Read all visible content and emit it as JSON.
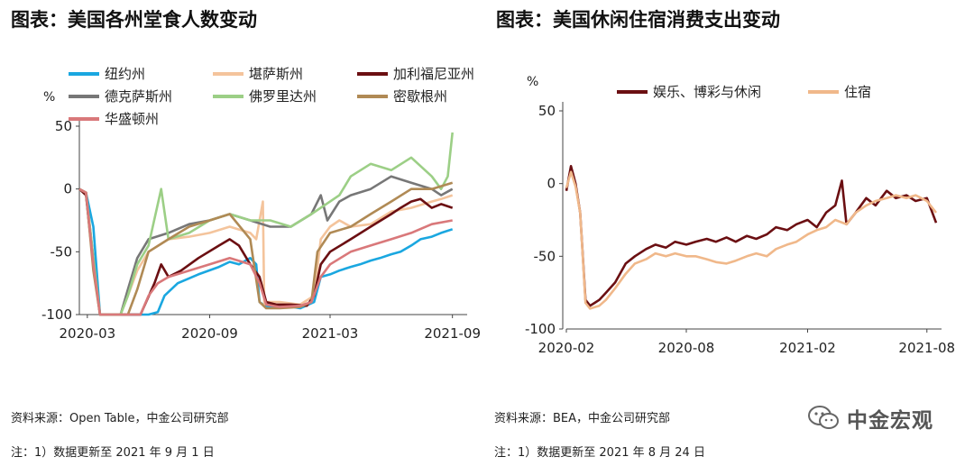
{
  "left_panel": {
    "title": "图表：美国各州堂食人数变动",
    "source": "资料来源：Open Table，中金公司研究部",
    "note": "注：1）数据更新至 2021 年 9 月 1 日"
  },
  "right_panel": {
    "title": "图表：美国休闲住宿消费支出变动",
    "source": "资料来源：BEA，中金公司研究部",
    "note": "注：1）数据更新至 2021 年 8 月 24 日"
  },
  "watermark": {
    "text": "中金宏观",
    "icon": "wechat-icon"
  },
  "chart_data": [
    {
      "type": "line",
      "title": "图表：美国各州堂食人数变动",
      "ylabel": "%",
      "xlabel": "",
      "ylim": [
        -100,
        50
      ],
      "yticks": [
        50,
        0,
        -50,
        -100
      ],
      "xlim": [
        "2020-02-18",
        "2021-09-15"
      ],
      "xticks": [
        "2020-03",
        "2020-09",
        "2021-03",
        "2021-09"
      ],
      "grid": false,
      "legend_position": "top",
      "series": [
        {
          "name": "纽约州",
          "color": "#1aa7e0",
          "x": [
            "2020-02-18",
            "2020-02-28",
            "2020-03-10",
            "2020-03-20",
            "2020-04-01",
            "2020-05-01",
            "2020-06-01",
            "2020-06-15",
            "2020-06-25",
            "2020-07-15",
            "2020-08-15",
            "2020-09-15",
            "2020-10-01",
            "2020-10-15",
            "2020-11-01",
            "2020-11-10",
            "2020-11-15",
            "2020-11-25",
            "2020-12-10",
            "2020-12-25",
            "2021-01-15",
            "2021-02-05",
            "2021-02-15",
            "2021-03-01",
            "2021-03-15",
            "2021-04-01",
            "2021-04-15",
            "2021-05-01",
            "2021-05-15",
            "2021-06-01",
            "2021-06-15",
            "2021-07-01",
            "2021-07-15",
            "2021-08-01",
            "2021-08-15",
            "2021-09-01"
          ],
          "y": [
            0,
            -3,
            -30,
            -100,
            -100,
            -100,
            -100,
            -98,
            -85,
            -75,
            -68,
            -62,
            -58,
            -60,
            -55,
            -60,
            -90,
            -94,
            -94,
            -93,
            -95,
            -90,
            -70,
            -68,
            -65,
            -62,
            -60,
            -57,
            -55,
            -52,
            -50,
            -45,
            -40,
            -38,
            -35,
            -32
          ]
        },
        {
          "name": "堪萨斯州",
          "color": "#f4c49c",
          "x": [
            "2020-02-18",
            "2020-02-28",
            "2020-03-10",
            "2020-03-20",
            "2020-04-01",
            "2020-04-20",
            "2020-05-01",
            "2020-05-15",
            "2020-06-01",
            "2020-07-01",
            "2020-08-01",
            "2020-09-01",
            "2020-10-01",
            "2020-11-01",
            "2020-11-10",
            "2020-11-20",
            "2020-11-22",
            "2020-11-25",
            "2020-12-15",
            "2021-01-15",
            "2021-02-05",
            "2021-02-15",
            "2021-03-01",
            "2021-03-15",
            "2021-04-01",
            "2021-05-01",
            "2021-06-01",
            "2021-07-01",
            "2021-08-01",
            "2021-08-15",
            "2021-09-01"
          ],
          "y": [
            0,
            -3,
            -60,
            -100,
            -100,
            -100,
            -85,
            -65,
            -50,
            -40,
            -38,
            -35,
            -30,
            -35,
            -40,
            -10,
            -92,
            -90,
            -90,
            -92,
            -85,
            -40,
            -30,
            -25,
            -30,
            -28,
            -18,
            -15,
            -10,
            -8,
            -5
          ]
        },
        {
          "name": "加利福尼亚州",
          "color": "#6b0f12",
          "x": [
            "2020-02-18",
            "2020-02-28",
            "2020-03-10",
            "2020-03-20",
            "2020-04-01",
            "2020-05-01",
            "2020-05-20",
            "2020-06-10",
            "2020-06-20",
            "2020-07-01",
            "2020-07-20",
            "2020-08-15",
            "2020-09-15",
            "2020-10-01",
            "2020-10-15",
            "2020-11-01",
            "2020-11-15",
            "2020-11-25",
            "2020-12-10",
            "2021-01-01",
            "2021-01-25",
            "2021-02-05",
            "2021-02-15",
            "2021-03-01",
            "2021-04-01",
            "2021-05-01",
            "2021-06-01",
            "2021-06-15",
            "2021-07-01",
            "2021-07-15",
            "2021-08-01",
            "2021-08-15",
            "2021-09-01"
          ],
          "y": [
            0,
            -5,
            -60,
            -100,
            -100,
            -100,
            -100,
            -75,
            -60,
            -70,
            -65,
            -55,
            -45,
            -40,
            -45,
            -60,
            -70,
            -90,
            -92,
            -92,
            -93,
            -85,
            -60,
            -50,
            -40,
            -30,
            -20,
            -15,
            -10,
            -8,
            -15,
            -12,
            -15
          ]
        },
        {
          "name": "德克萨斯州",
          "color": "#777777",
          "x": [
            "2020-02-18",
            "2020-02-28",
            "2020-03-10",
            "2020-03-20",
            "2020-04-01",
            "2020-04-20",
            "2020-05-01",
            "2020-05-15",
            "2020-06-01",
            "2020-07-01",
            "2020-08-01",
            "2020-09-01",
            "2020-10-01",
            "2020-11-01",
            "2020-12-01",
            "2021-01-01",
            "2021-02-01",
            "2021-02-15",
            "2021-02-25",
            "2021-03-15",
            "2021-04-01",
            "2021-05-01",
            "2021-06-01",
            "2021-07-01",
            "2021-08-01",
            "2021-08-15",
            "2021-09-01"
          ],
          "y": [
            0,
            -3,
            -55,
            -100,
            -100,
            -100,
            -80,
            -55,
            -40,
            -35,
            -28,
            -25,
            -20,
            -25,
            -30,
            -30,
            -20,
            -5,
            -25,
            -10,
            -5,
            0,
            10,
            5,
            0,
            -5,
            0
          ]
        },
        {
          "name": "佛罗里达州",
          "color": "#9ccf86",
          "x": [
            "2020-02-18",
            "2020-02-28",
            "2020-03-10",
            "2020-03-20",
            "2020-04-01",
            "2020-04-20",
            "2020-05-01",
            "2020-05-15",
            "2020-06-01",
            "2020-06-20",
            "2020-07-01",
            "2020-08-01",
            "2020-09-01",
            "2020-10-01",
            "2020-11-01",
            "2020-12-01",
            "2021-01-01",
            "2021-02-01",
            "2021-03-01",
            "2021-03-15",
            "2021-04-01",
            "2021-05-01",
            "2021-06-01",
            "2021-07-01",
            "2021-08-01",
            "2021-08-15",
            "2021-08-25",
            "2021-09-01"
          ],
          "y": [
            0,
            -3,
            -55,
            -100,
            -100,
            -100,
            -85,
            -60,
            -45,
            0,
            -40,
            -35,
            -25,
            -20,
            -25,
            -25,
            -30,
            -20,
            -10,
            -5,
            10,
            20,
            15,
            25,
            10,
            0,
            10,
            45
          ]
        },
        {
          "name": "密歇根州",
          "color": "#b08a55",
          "x": [
            "2020-02-18",
            "2020-02-28",
            "2020-03-10",
            "2020-03-20",
            "2020-04-01",
            "2020-05-01",
            "2020-05-15",
            "2020-06-01",
            "2020-07-01",
            "2020-08-01",
            "2020-09-01",
            "2020-10-01",
            "2020-11-01",
            "2020-11-15",
            "2020-11-25",
            "2020-12-15",
            "2021-01-15",
            "2021-02-01",
            "2021-02-10",
            "2021-03-01",
            "2021-04-01",
            "2021-05-01",
            "2021-06-01",
            "2021-07-01",
            "2021-08-01",
            "2021-09-01"
          ],
          "y": [
            0,
            -3,
            -65,
            -100,
            -100,
            -100,
            -80,
            -50,
            -40,
            -30,
            -25,
            -20,
            -40,
            -90,
            -95,
            -95,
            -94,
            -90,
            -50,
            -35,
            -30,
            -20,
            -10,
            0,
            0,
            5
          ]
        },
        {
          "name": "华盛顿州",
          "color": "#d9787a",
          "x": [
            "2020-02-18",
            "2020-02-28",
            "2020-03-10",
            "2020-03-20",
            "2020-04-01",
            "2020-05-01",
            "2020-05-20",
            "2020-06-01",
            "2020-06-15",
            "2020-07-01",
            "2020-08-01",
            "2020-09-01",
            "2020-10-01",
            "2020-11-01",
            "2020-11-15",
            "2020-11-25",
            "2020-12-15",
            "2021-01-15",
            "2021-02-01",
            "2021-02-15",
            "2021-03-01",
            "2021-04-01",
            "2021-05-01",
            "2021-06-01",
            "2021-07-01",
            "2021-08-01",
            "2021-09-01"
          ],
          "y": [
            0,
            -3,
            -60,
            -100,
            -100,
            -100,
            -100,
            -85,
            -75,
            -70,
            -65,
            -60,
            -55,
            -60,
            -75,
            -92,
            -94,
            -93,
            -90,
            -70,
            -60,
            -50,
            -45,
            -40,
            -35,
            -28,
            -25
          ]
        }
      ]
    },
    {
      "type": "line",
      "title": "图表：美国休闲住宿消费支出变动",
      "ylabel": "%",
      "xlabel": "",
      "ylim": [
        -100,
        50
      ],
      "yticks": [
        50,
        0,
        -50,
        -100
      ],
      "xlim": [
        "2020-02-01",
        "2021-08-15"
      ],
      "xticks": [
        "2020-02",
        "2020-08",
        "2021-02",
        "2021-08"
      ],
      "grid": false,
      "legend_position": "top",
      "series": [
        {
          "name": "娱乐、博彩与休闲",
          "color": "#6b0f12",
          "x": [
            "2020-02-01",
            "2020-02-08",
            "2020-02-15",
            "2020-02-22",
            "2020-03-01",
            "2020-03-08",
            "2020-03-15",
            "2020-03-22",
            "2020-04-01",
            "2020-04-15",
            "2020-05-01",
            "2020-05-15",
            "2020-06-01",
            "2020-06-15",
            "2020-07-01",
            "2020-07-15",
            "2020-08-01",
            "2020-08-15",
            "2020-09-01",
            "2020-09-15",
            "2020-10-01",
            "2020-10-15",
            "2020-11-01",
            "2020-11-15",
            "2020-12-01",
            "2020-12-15",
            "2021-01-01",
            "2021-01-15",
            "2021-02-01",
            "2021-02-15",
            "2021-03-01",
            "2021-03-15",
            "2021-03-25",
            "2021-04-01",
            "2021-04-15",
            "2021-05-01",
            "2021-05-15",
            "2021-06-01",
            "2021-06-15",
            "2021-07-01",
            "2021-07-15",
            "2021-08-01",
            "2021-08-15"
          ],
          "y": [
            -5,
            12,
            0,
            -20,
            -80,
            -84,
            -82,
            -80,
            -75,
            -68,
            -55,
            -50,
            -45,
            -42,
            -44,
            -40,
            -42,
            -40,
            -38,
            -40,
            -37,
            -40,
            -36,
            -38,
            -35,
            -30,
            -32,
            -28,
            -25,
            -30,
            -20,
            -15,
            2,
            -28,
            -20,
            -10,
            -15,
            -5,
            -10,
            -8,
            -12,
            -10,
            -27
          ]
        },
        {
          "name": "住宿",
          "color": "#f0b88a",
          "x": [
            "2020-02-01",
            "2020-02-08",
            "2020-02-15",
            "2020-02-22",
            "2020-03-01",
            "2020-03-08",
            "2020-03-15",
            "2020-03-22",
            "2020-04-01",
            "2020-04-15",
            "2020-05-01",
            "2020-05-15",
            "2020-06-01",
            "2020-06-15",
            "2020-07-01",
            "2020-07-15",
            "2020-08-01",
            "2020-08-15",
            "2020-09-01",
            "2020-09-15",
            "2020-10-01",
            "2020-10-15",
            "2020-11-01",
            "2020-11-15",
            "2020-12-01",
            "2020-12-15",
            "2021-01-01",
            "2021-01-15",
            "2021-02-01",
            "2021-02-15",
            "2021-03-01",
            "2021-03-15",
            "2021-04-01",
            "2021-04-15",
            "2021-05-01",
            "2021-05-15",
            "2021-06-01",
            "2021-06-15",
            "2021-07-01",
            "2021-07-15",
            "2021-08-01",
            "2021-08-15"
          ],
          "y": [
            -3,
            8,
            -2,
            -20,
            -82,
            -86,
            -85,
            -84,
            -80,
            -72,
            -62,
            -55,
            -52,
            -48,
            -50,
            -48,
            -50,
            -50,
            -52,
            -54,
            -55,
            -53,
            -50,
            -48,
            -50,
            -45,
            -42,
            -40,
            -35,
            -32,
            -30,
            -25,
            -28,
            -20,
            -15,
            -12,
            -10,
            -8,
            -10,
            -8,
            -12,
            -20
          ]
        }
      ]
    }
  ]
}
